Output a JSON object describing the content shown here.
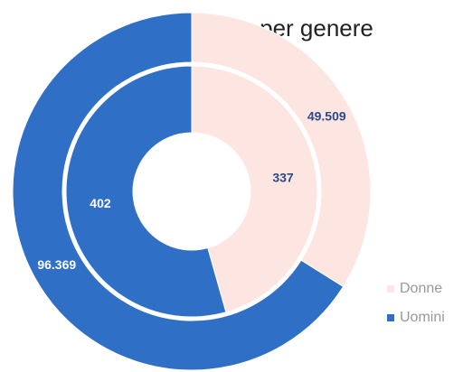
{
  "chart_data": {
    "type": "donut",
    "title": "per genere",
    "categories": [
      "Donne",
      "Uomini"
    ],
    "colors": [
      "#fde5e2",
      "#2f6fc6"
    ],
    "series": [
      {
        "values": [
          49509,
          96369
        ],
        "value_labels": [
          "49.509",
          "96.369"
        ]
      },
      {
        "values": [
          337,
          402
        ]
      }
    ]
  }
}
